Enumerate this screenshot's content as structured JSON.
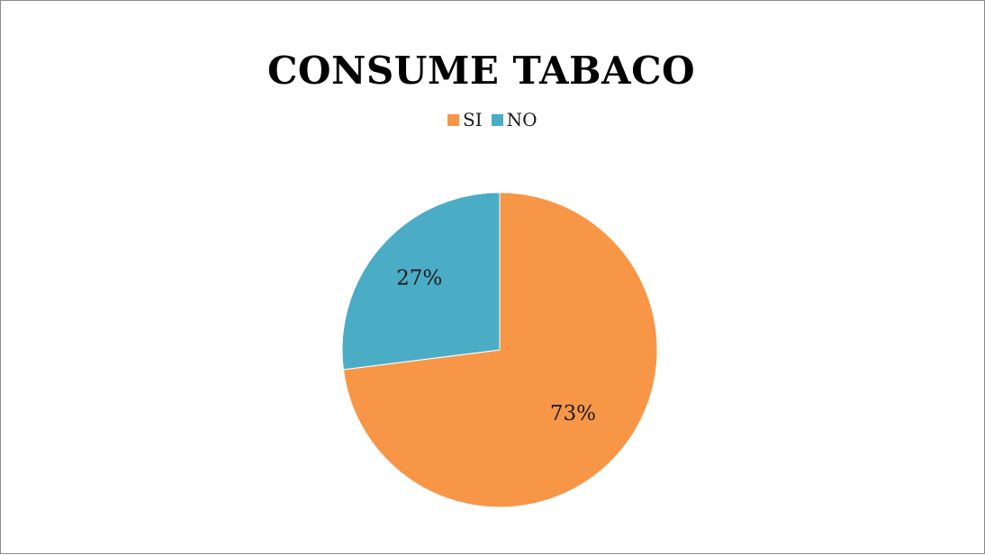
{
  "chart_data": {
    "type": "pie",
    "title": "CONSUME TABACO",
    "categories": [
      "SI",
      "NO"
    ],
    "values": [
      73,
      27
    ],
    "labels": [
      "73%",
      "27%"
    ],
    "colors": [
      "#F79646",
      "#4BACC6"
    ],
    "legend_position": "top"
  }
}
